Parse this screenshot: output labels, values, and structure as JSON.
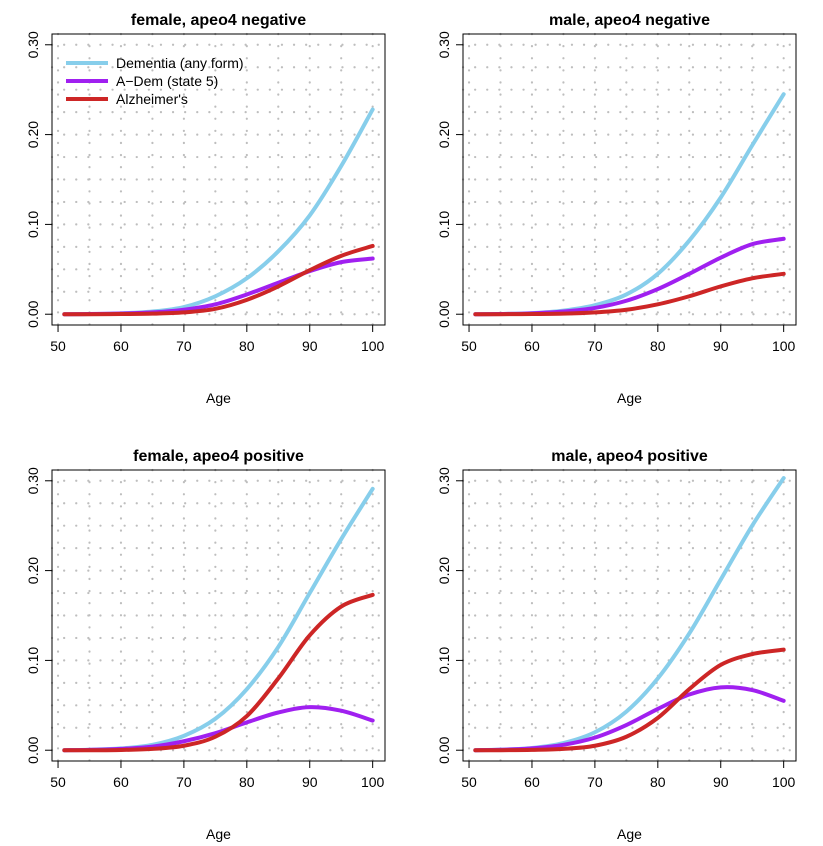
{
  "colors": {
    "dementia": "#87CEEB",
    "adem": "#A020F0",
    "alzheimers": "#CD2626",
    "grid": "#BEBEBE"
  },
  "chart_data": [
    {
      "type": "line",
      "title": "female, apeo4 negative",
      "xlabel": "Age",
      "ylabel": "",
      "xlim": [
        51,
        100
      ],
      "ylim": [
        0,
        0.3
      ],
      "xticks": [
        50,
        60,
        70,
        80,
        90,
        100
      ],
      "yticks": [
        0.0,
        0.1,
        0.2,
        0.3
      ],
      "ytick_labels": [
        "0.00",
        "0.10",
        "0.20",
        "0.30"
      ],
      "grid": true,
      "legend": "top-left",
      "x": [
        51,
        55,
        60,
        65,
        70,
        75,
        80,
        85,
        90,
        95,
        100
      ],
      "series": [
        {
          "name": "Dementia (any form)",
          "color_key": "dementia",
          "values": [
            0.0,
            0.0002,
            0.001,
            0.003,
            0.008,
            0.02,
            0.04,
            0.07,
            0.11,
            0.165,
            0.228
          ]
        },
        {
          "name": "A−Dem (state 5)",
          "color_key": "adem",
          "values": [
            0.0,
            0.0002,
            0.0008,
            0.002,
            0.005,
            0.011,
            0.022,
            0.035,
            0.048,
            0.058,
            0.062
          ]
        },
        {
          "name": "Alzheimer's",
          "color_key": "alzheimers",
          "values": [
            0.0,
            0.0,
            0.0002,
            0.0006,
            0.002,
            0.006,
            0.016,
            0.031,
            0.049,
            0.065,
            0.076
          ]
        }
      ]
    },
    {
      "type": "line",
      "title": "male, apeo4 negative",
      "xlabel": "Age",
      "ylabel": "",
      "xlim": [
        51,
        100
      ],
      "ylim": [
        0,
        0.3
      ],
      "xticks": [
        50,
        60,
        70,
        80,
        90,
        100
      ],
      "yticks": [
        0.0,
        0.1,
        0.2,
        0.3
      ],
      "ytick_labels": [
        "0.00",
        "0.10",
        "0.20",
        "0.30"
      ],
      "grid": true,
      "x": [
        51,
        55,
        60,
        65,
        70,
        75,
        80,
        85,
        90,
        95,
        100
      ],
      "series": [
        {
          "name": "Dementia (any form)",
          "color_key": "dementia",
          "values": [
            0.0,
            0.0003,
            0.0012,
            0.004,
            0.01,
            0.022,
            0.045,
            0.082,
            0.13,
            0.188,
            0.245
          ]
        },
        {
          "name": "A−Dem (state 5)",
          "color_key": "adem",
          "values": [
            0.0,
            0.0002,
            0.001,
            0.003,
            0.007,
            0.015,
            0.028,
            0.045,
            0.063,
            0.078,
            0.084
          ]
        },
        {
          "name": "Alzheimer's",
          "color_key": "alzheimers",
          "values": [
            0.0,
            0.0,
            0.0002,
            0.0006,
            0.002,
            0.005,
            0.011,
            0.02,
            0.031,
            0.04,
            0.045
          ]
        }
      ]
    },
    {
      "type": "line",
      "title": "female, apeo4 positive",
      "xlabel": "Age",
      "ylabel": "",
      "xlim": [
        51,
        100
      ],
      "ylim": [
        0,
        0.3
      ],
      "xticks": [
        50,
        60,
        70,
        80,
        90,
        100
      ],
      "yticks": [
        0.0,
        0.1,
        0.2,
        0.3
      ],
      "ytick_labels": [
        "0.00",
        "0.10",
        "0.20",
        "0.30"
      ],
      "grid": true,
      "x": [
        51,
        55,
        60,
        65,
        70,
        75,
        80,
        85,
        90,
        95,
        100
      ],
      "series": [
        {
          "name": "Dementia (any form)",
          "color_key": "dementia",
          "values": [
            0.0,
            0.0005,
            0.002,
            0.006,
            0.016,
            0.035,
            0.068,
            0.115,
            0.175,
            0.235,
            0.291
          ]
        },
        {
          "name": "A−Dem (state 5)",
          "color_key": "adem",
          "values": [
            0.0,
            0.0004,
            0.0015,
            0.004,
            0.01,
            0.019,
            0.031,
            0.042,
            0.048,
            0.044,
            0.033
          ]
        },
        {
          "name": "Alzheimer's",
          "color_key": "alzheimers",
          "values": [
            0.0,
            0.0,
            0.0003,
            0.0015,
            0.005,
            0.015,
            0.038,
            0.08,
            0.128,
            0.16,
            0.173
          ]
        }
      ]
    },
    {
      "type": "line",
      "title": "male, apeo4 positive",
      "xlabel": "Age",
      "ylabel": "",
      "xlim": [
        51,
        100
      ],
      "ylim": [
        0,
        0.3
      ],
      "xticks": [
        50,
        60,
        70,
        80,
        90,
        100
      ],
      "yticks": [
        0.0,
        0.1,
        0.2,
        0.3
      ],
      "ytick_labels": [
        "0.00",
        "0.10",
        "0.20",
        "0.30"
      ],
      "grid": true,
      "x": [
        51,
        55,
        60,
        65,
        70,
        75,
        80,
        85,
        90,
        95,
        100
      ],
      "series": [
        {
          "name": "Dementia (any form)",
          "color_key": "dementia",
          "values": [
            0.0,
            0.0006,
            0.0025,
            0.008,
            0.02,
            0.043,
            0.08,
            0.13,
            0.19,
            0.25,
            0.303
          ]
        },
        {
          "name": "A−Dem (state 5)",
          "color_key": "adem",
          "values": [
            0.0,
            0.0005,
            0.002,
            0.006,
            0.014,
            0.028,
            0.046,
            0.062,
            0.07,
            0.067,
            0.055
          ]
        },
        {
          "name": "Alzheimer's",
          "color_key": "alzheimers",
          "values": [
            0.0,
            0.0,
            0.0004,
            0.0015,
            0.005,
            0.015,
            0.036,
            0.068,
            0.095,
            0.107,
            0.112
          ]
        }
      ]
    }
  ]
}
